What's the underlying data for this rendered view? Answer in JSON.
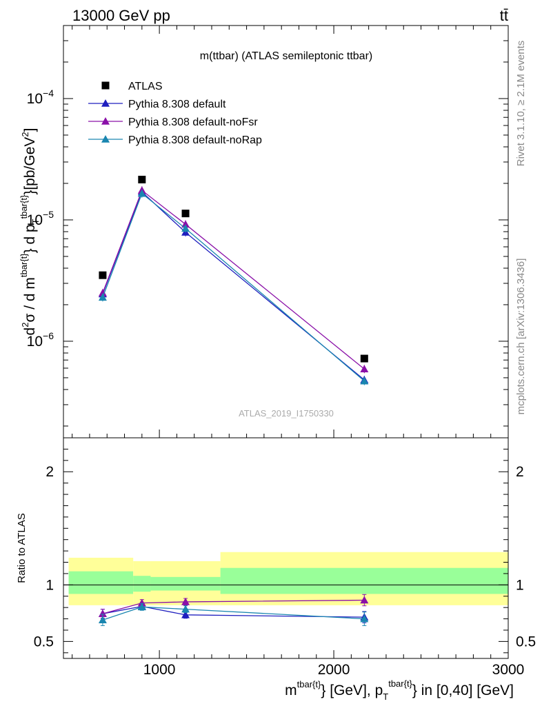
{
  "header": {
    "left": "13000 GeV pp",
    "right": "tt̄"
  },
  "side_text": {
    "rivet": "Rivet 3.1.10, ≥ 2.1M events",
    "mcplots": "mcplots.cern.ch [arXiv:1306.3436]"
  },
  "chart_data": [
    {
      "type": "scatter",
      "title": "m(ttbar) (ATLAS semileptonic ttbar)",
      "watermark": "ATLAS_2019_I1750330",
      "xlabel": "m^{tbar{t}} [GeV], p_T^{tbar{t}} in [0,40] [GeV]",
      "xlabel_parts": {
        "m": "m",
        "sup": "tbar{t}",
        "mid": "} [GeV], p",
        "sub": "T",
        "sup2": "tbar{t}",
        "tail": "} in [0,40] [GeV]"
      },
      "ylabel": "d²σ / d m^{tbar{t}} d p_T^{tbar{t}} [pb/GeV²]",
      "ylabel_parts": {
        "a": "d",
        "a_sup": "2",
        "b": "σ / d  m",
        "b_sup": "tbar{t}",
        "c": "} d p",
        "c_sub": "T",
        "c_sup": "tbar{t}",
        "d": "}[pb/GeV",
        "d_sup": "2",
        "e": "]"
      },
      "yscale": "log",
      "xlim": [
        450,
        3000
      ],
      "ylim": [
        1.6e-07,
        0.0004
      ],
      "x_ticks": [
        1000,
        2000,
        3000
      ],
      "y_ticks": [
        {
          "value": 1e-06,
          "base": "10",
          "exp": "−6"
        },
        {
          "value": 1e-05,
          "base": "10",
          "exp": "−5"
        },
        {
          "value": 0.0001,
          "base": "10",
          "exp": "−4"
        }
      ],
      "legend_position": "top-left",
      "series": [
        {
          "name": "ATLAS",
          "marker": "square",
          "color": "#000000",
          "x": [
            675,
            900,
            1150,
            2175
          ],
          "y": [
            3.5e-06,
            2.15e-05,
            1.13e-05,
            7.2e-07
          ]
        },
        {
          "name": "Pythia 8.308 default",
          "marker": "triangle",
          "color": "#1f1fbf",
          "x": [
            675,
            900,
            1150,
            2175
          ],
          "y": [
            2.45e-06,
            1.7e-05,
            7.9e-06,
            4.8e-07
          ]
        },
        {
          "name": "Pythia 8.308 default-noFsr",
          "marker": "triangle",
          "color": "#8a10a8",
          "x": [
            675,
            900,
            1150,
            2175
          ],
          "y": [
            2.5e-06,
            1.75e-05,
            9.2e-06,
            5.9e-07
          ]
        },
        {
          "name": "Pythia 8.308 default-noRap",
          "marker": "triangle",
          "color": "#1a86b0",
          "x": [
            675,
            900,
            1150,
            2175
          ],
          "y": [
            2.3e-06,
            1.65e-05,
            8.5e-06,
            4.7e-07
          ]
        }
      ]
    },
    {
      "type": "line",
      "ylabel": "Ratio to ATLAS",
      "xlim": [
        450,
        3000
      ],
      "ylim": [
        0.35,
        2.3
      ],
      "y_ticks": [
        0.5,
        1,
        2
      ],
      "y_tick_labels": [
        "0.5",
        "1",
        "2"
      ],
      "reference": 1,
      "bands": [
        {
          "x0": 480,
          "x1": 850,
          "inner": [
            0.92,
            1.12
          ],
          "outer": [
            0.82,
            1.24
          ]
        },
        {
          "x0": 850,
          "x1": 950,
          "inner": [
            0.94,
            1.08
          ],
          "outer": [
            0.82,
            1.21
          ]
        },
        {
          "x0": 950,
          "x1": 1350,
          "inner": [
            0.95,
            1.07
          ],
          "outer": [
            0.82,
            1.21
          ]
        },
        {
          "x0": 1350,
          "x1": 3000,
          "inner": [
            0.92,
            1.15
          ],
          "outer": [
            0.82,
            1.29
          ]
        }
      ],
      "band_colors": {
        "inner": "#99ff99",
        "outer": "#ffff99"
      },
      "series": [
        {
          "name": "Pythia 8.308 default",
          "color": "#1f1fbf",
          "x": [
            675,
            900,
            1150,
            2175
          ],
          "y": [
            0.745,
            0.81,
            0.735,
            0.715
          ],
          "err": [
            0.04,
            0.03,
            0.03,
            0.05
          ]
        },
        {
          "name": "Pythia 8.308 default-noFsr",
          "color": "#8a10a8",
          "x": [
            675,
            900,
            1150,
            2175
          ],
          "y": [
            0.745,
            0.84,
            0.85,
            0.865
          ],
          "err": [
            0.04,
            0.03,
            0.03,
            0.05
          ]
        },
        {
          "name": "Pythia 8.308 default-noRap",
          "color": "#1a86b0",
          "x": [
            675,
            900,
            1150,
            2175
          ],
          "y": [
            0.69,
            0.805,
            0.785,
            0.7
          ],
          "err": [
            0.05,
            0.03,
            0.03,
            0.06
          ]
        }
      ]
    }
  ]
}
